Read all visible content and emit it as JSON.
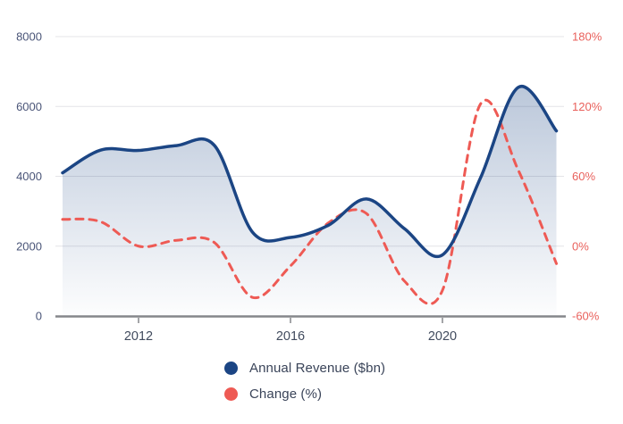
{
  "chart_data": {
    "type": "line",
    "title": "",
    "x": [
      2010,
      2011,
      2012,
      2013,
      2014,
      2015,
      2016,
      2017,
      2018,
      2019,
      2020,
      2021,
      2022,
      2023
    ],
    "x_ticks": [
      2012,
      2016,
      2020
    ],
    "x_tick_labels": [
      "2012",
      "2016",
      "2020"
    ],
    "left_ylim": [
      0,
      8000
    ],
    "left_ticks": [
      0,
      2000,
      4000,
      6000,
      8000
    ],
    "left_tick_labels": [
      "0",
      "2000",
      "4000",
      "6000",
      "8000"
    ],
    "right_ylim": [
      -60,
      180
    ],
    "right_ticks": [
      -60,
      0,
      60,
      120,
      180
    ],
    "right_tick_labels": [
      "-60%",
      "0%",
      "60%",
      "120%",
      "180%"
    ],
    "grid": "horizontal",
    "legend_position": "bottom",
    "series": [
      {
        "name": "Annual Revenue ($bn)",
        "axis": "left",
        "line_style": "solid",
        "fill": "gradient-fade",
        "color": "#1b4584",
        "values": [
          4100,
          4750,
          4740,
          4880,
          4880,
          2400,
          2250,
          2600,
          3350,
          2500,
          1750,
          3950,
          6550,
          5300
        ]
      },
      {
        "name": "Change (%)",
        "axis": "right",
        "line_style": "dashed",
        "fill": "none",
        "color": "#ee5a54",
        "values": [
          23,
          21,
          0,
          5,
          3,
          -44,
          -17,
          20,
          28,
          -30,
          -38,
          122,
          65,
          -15
        ]
      }
    ]
  },
  "legend": {
    "items": [
      {
        "label": "Annual Revenue ($bn)",
        "color": "#1b4584"
      },
      {
        "label": "Change (%)",
        "color": "#ee5a54"
      }
    ]
  },
  "colors": {
    "revenue_line": "#1b4584",
    "change_line": "#ee5a54",
    "grid": "#e4e4e7",
    "axis": "#85878b",
    "left_tick_label": "#4a5578",
    "right_tick_label": "#e9615c",
    "x_tick_label": "#414b5e",
    "legend_text": "#3a4459",
    "background": "#ffffff"
  }
}
